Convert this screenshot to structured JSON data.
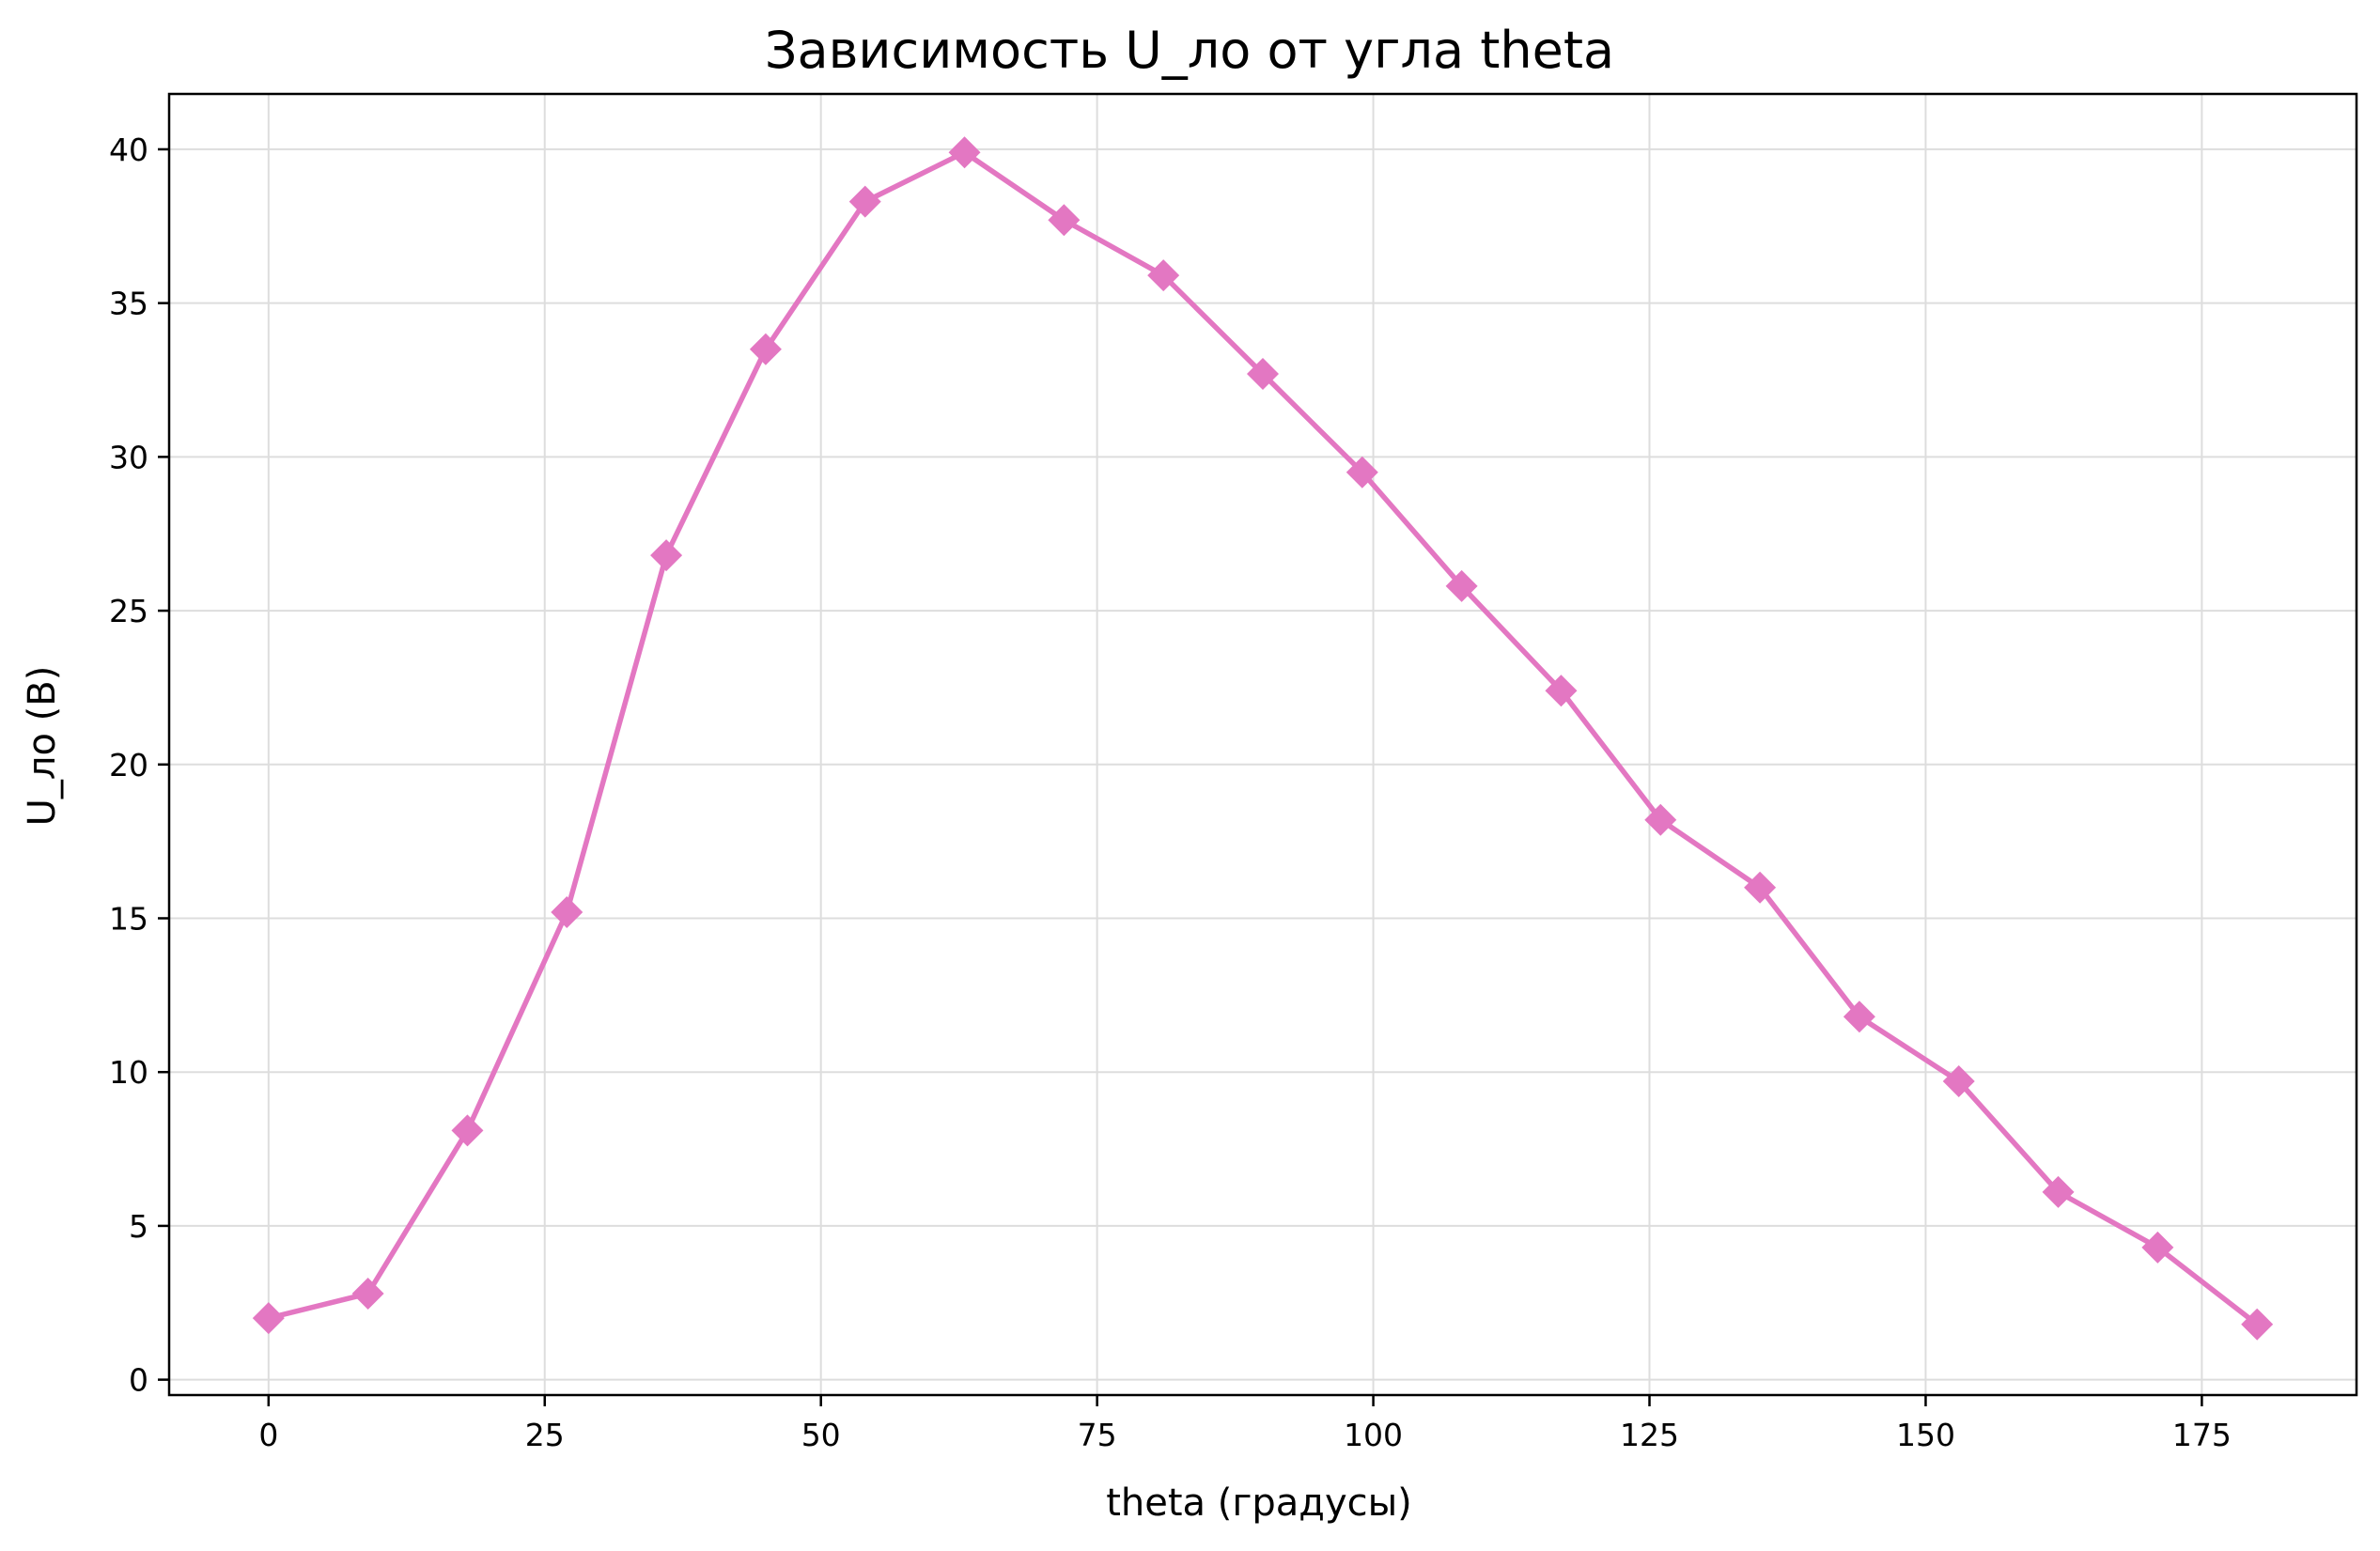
{
  "colors": {
    "series": "#e377c2",
    "grid": "#dddddd",
    "axes": "#000000",
    "background": "#ffffff"
  },
  "chart_data": {
    "type": "line",
    "title": "Зависимость U_ло от угла theta",
    "xlabel": "theta (градусы)",
    "ylabel": "U_ло (В)",
    "xlim": [
      -9,
      189
    ],
    "ylim": [
      -0.5,
      41.8
    ],
    "xticks": [
      0,
      25,
      50,
      75,
      100,
      125,
      150,
      175
    ],
    "yticks": [
      0,
      5,
      10,
      15,
      20,
      25,
      30,
      35,
      40
    ],
    "grid": true,
    "marker": "diamond",
    "series": [
      {
        "x": [
          0,
          9,
          18,
          27,
          36,
          45,
          54,
          63,
          72,
          81,
          90,
          99,
          108,
          117,
          126,
          135,
          144,
          153,
          162,
          171,
          180
        ],
        "y": [
          2.0,
          2.8,
          8.1,
          15.2,
          26.8,
          33.5,
          38.3,
          39.9,
          37.7,
          35.9,
          32.7,
          29.5,
          25.8,
          22.4,
          18.2,
          16.0,
          11.8,
          9.7,
          6.1,
          4.3,
          1.8
        ]
      }
    ]
  }
}
